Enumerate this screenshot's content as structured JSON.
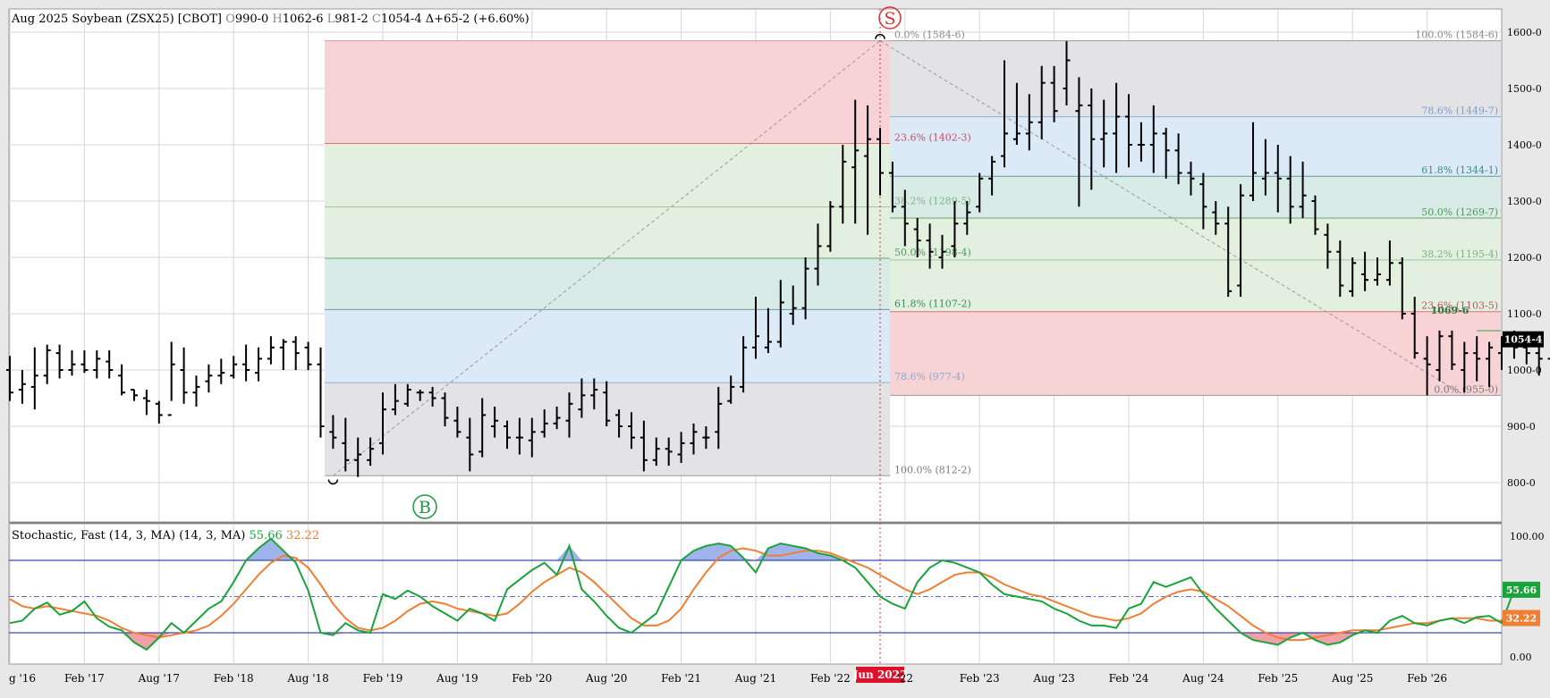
{
  "chart_data": [
    {
      "type": "ohlc",
      "header": {
        "title": "Aug 2025 Soybean (ZSX25) [CBOT]",
        "o_label": "O",
        "o": "990-0",
        "h_label": "H",
        "h": "1062-6",
        "l_label": "L",
        "l": "981-2",
        "c_label": "C",
        "c": "1054-4",
        "chg": "Δ+65-2 (+6.60%)"
      },
      "ylim": [
        750,
        1630
      ],
      "y_ticks": [
        "800-0",
        "900-0",
        "1000-0",
        "1100-0",
        "1200-0",
        "1300-0",
        "1400-0",
        "1500-0",
        "1600-0"
      ],
      "y_tick_values": [
        800,
        900,
        1000,
        1100,
        1200,
        1300,
        1400,
        1500,
        1600
      ],
      "last_price_label": "1054-4",
      "last_price": 1054.5,
      "ohlc_monthly": [
        [
          1000,
          1025,
          945,
          960
        ],
        [
          965,
          1000,
          940,
          975
        ],
        [
          970,
          1040,
          930,
          990
        ],
        [
          990,
          1045,
          975,
          1035
        ],
        [
          1030,
          1045,
          985,
          1000
        ],
        [
          1000,
          1035,
          990,
          1010
        ],
        [
          1010,
          1035,
          995,
          1000
        ],
        [
          1000,
          1035,
          985,
          1020
        ],
        [
          1015,
          1035,
          985,
          1000
        ],
        [
          990,
          1010,
          955,
          960
        ],
        [
          965,
          965,
          945,
          955
        ],
        [
          950,
          965,
          920,
          945
        ],
        [
          940,
          945,
          905,
          920
        ],
        [
          920,
          1050,
          945,
          1010
        ],
        [
          1000,
          1040,
          940,
          960
        ],
        [
          960,
          990,
          935,
          970
        ],
        [
          980,
          1010,
          960,
          990
        ],
        [
          990,
          1020,
          975,
          995
        ],
        [
          990,
          1025,
          985,
          1010
        ],
        [
          1010,
          1045,
          980,
          1000
        ],
        [
          995,
          1040,
          980,
          1020
        ],
        [
          1020,
          1060,
          1010,
          1040
        ],
        [
          1040,
          1055,
          1000,
          1050
        ],
        [
          1050,
          1060,
          1000,
          1030
        ],
        [
          1040,
          1050,
          1000,
          1010
        ],
        [
          1010,
          1040,
          880,
          900
        ],
        [
          890,
          920,
          860,
          880
        ],
        [
          870,
          915,
          820,
          840
        ],
        [
          840,
          880,
          810,
          850
        ],
        [
          840,
          880,
          830,
          860
        ],
        [
          870,
          960,
          850,
          930
        ],
        [
          930,
          975,
          920,
          945
        ],
        [
          940,
          975,
          935,
          965
        ],
        [
          960,
          965,
          945,
          960
        ],
        [
          960,
          970,
          935,
          950
        ],
        [
          950,
          960,
          900,
          915
        ],
        [
          910,
          935,
          880,
          890
        ],
        [
          880,
          915,
          820,
          850
        ],
        [
          855,
          950,
          845,
          920
        ],
        [
          900,
          935,
          880,
          910
        ],
        [
          900,
          910,
          860,
          880
        ],
        [
          880,
          915,
          850,
          880
        ],
        [
          875,
          915,
          845,
          890
        ],
        [
          890,
          930,
          880,
          905
        ],
        [
          905,
          935,
          895,
          915
        ],
        [
          910,
          960,
          880,
          940
        ],
        [
          930,
          985,
          915,
          955
        ],
        [
          955,
          985,
          930,
          965
        ],
        [
          960,
          980,
          900,
          910
        ],
        [
          920,
          930,
          880,
          900
        ],
        [
          900,
          925,
          860,
          880
        ],
        [
          880,
          910,
          820,
          840
        ],
        [
          840,
          880,
          830,
          860
        ],
        [
          860,
          880,
          830,
          855
        ],
        [
          850,
          890,
          835,
          870
        ],
        [
          870,
          905,
          850,
          890
        ],
        [
          880,
          900,
          860,
          880
        ],
        [
          890,
          970,
          860,
          940
        ],
        [
          945,
          990,
          940,
          970
        ],
        [
          970,
          1060,
          960,
          1040
        ],
        [
          1040,
          1130,
          1020,
          1060
        ],
        [
          1040,
          1110,
          1030,
          1050
        ],
        [
          1050,
          1160,
          1040,
          1120
        ],
        [
          1100,
          1150,
          1080,
          1110
        ],
        [
          1110,
          1200,
          1090,
          1180
        ],
        [
          1180,
          1260,
          1150,
          1220
        ],
        [
          1220,
          1300,
          1210,
          1290
        ],
        [
          1290,
          1400,
          1260,
          1370
        ],
        [
          1360,
          1480,
          1260,
          1390
        ],
        [
          1380,
          1470,
          1240,
          1410
        ],
        [
          1410,
          1430,
          1310,
          1350
        ],
        [
          1350,
          1370,
          1280,
          1290
        ],
        [
          1290,
          1320,
          1220,
          1260
        ],
        [
          1250,
          1270,
          1200,
          1230
        ],
        [
          1230,
          1260,
          1180,
          1210
        ],
        [
          1200,
          1240,
          1180,
          1210
        ],
        [
          1220,
          1300,
          1200,
          1260
        ],
        [
          1260,
          1300,
          1240,
          1280
        ],
        [
          1290,
          1350,
          1280,
          1340
        ],
        [
          1340,
          1380,
          1310,
          1370
        ],
        [
          1380,
          1550,
          1360,
          1420
        ],
        [
          1410,
          1510,
          1400,
          1420
        ],
        [
          1420,
          1490,
          1390,
          1440
        ],
        [
          1440,
          1540,
          1410,
          1510
        ],
        [
          1510,
          1540,
          1440,
          1460
        ],
        [
          1500,
          1584,
          1470,
          1550
        ],
        [
          1460,
          1520,
          1290,
          1470
        ],
        [
          1470,
          1500,
          1320,
          1410
        ],
        [
          1410,
          1480,
          1360,
          1420
        ],
        [
          1420,
          1510,
          1350,
          1450
        ],
        [
          1450,
          1490,
          1360,
          1400
        ],
        [
          1400,
          1440,
          1370,
          1400
        ],
        [
          1400,
          1470,
          1350,
          1420
        ],
        [
          1420,
          1430,
          1340,
          1390
        ],
        [
          1390,
          1420,
          1330,
          1350
        ],
        [
          1350,
          1370,
          1310,
          1340
        ],
        [
          1330,
          1350,
          1250,
          1290
        ],
        [
          1280,
          1300,
          1240,
          1260
        ],
        [
          1260,
          1290,
          1130,
          1140
        ],
        [
          1150,
          1330,
          1130,
          1310
        ],
        [
          1310,
          1440,
          1300,
          1350
        ],
        [
          1340,
          1410,
          1310,
          1350
        ],
        [
          1350,
          1400,
          1280,
          1340
        ],
        [
          1340,
          1380,
          1260,
          1290
        ],
        [
          1290,
          1370,
          1270,
          1310
        ],
        [
          1300,
          1310,
          1240,
          1250
        ],
        [
          1240,
          1260,
          1180,
          1210
        ],
        [
          1210,
          1230,
          1130,
          1150
        ],
        [
          1140,
          1200,
          1130,
          1190
        ],
        [
          1170,
          1210,
          1140,
          1160
        ],
        [
          1160,
          1200,
          1150,
          1170
        ],
        [
          1160,
          1230,
          1150,
          1190
        ],
        [
          1190,
          1200,
          1090,
          1100
        ],
        [
          1100,
          1130,
          1020,
          1030
        ],
        [
          1020,
          1060,
          955,
          1010
        ],
        [
          1000,
          1070,
          980,
          1060
        ],
        [
          1060,
          1070,
          1000,
          1010
        ],
        [
          1000,
          1050,
          960,
          1030
        ],
        [
          1030,
          1060,
          980,
          1020
        ],
        [
          1020,
          1050,
          970,
          1040
        ],
        [
          1030,
          1060,
          1000,
          1050
        ],
        [
          1050,
          1070,
          1020,
          1040
        ],
        [
          1040,
          1060,
          1010,
          1030
        ],
        [
          1030,
          1050,
          990,
          1020
        ],
        [
          1020,
          1060,
          970,
          1030
        ],
        [
          1030,
          1060,
          990,
          1030
        ],
        [
          1030,
          1070,
          1000,
          1040
        ],
        [
          1030,
          1070,
          1000,
          1030
        ],
        [
          1030,
          1070,
          990,
          1040
        ],
        [
          990,
          1062,
          981,
          1054
        ]
      ],
      "extra_bar_mid": [
        1015,
        1085,
        1005,
        1030
      ],
      "fib_left": {
        "levels": [
          {
            "label": "0.0% (1584-6)",
            "price": 1584.75
          },
          {
            "label": "23.6% (1402-3)",
            "price": 1402.4
          },
          {
            "label": "38.2% (1289-5)",
            "price": 1289.6
          },
          {
            "label": "50.0% (1198-4)",
            "price": 1198.5
          },
          {
            "label": "61.8% (1107-2)",
            "price": 1107.25
          },
          {
            "label": "78.6% (977-4)",
            "price": 977.5
          },
          {
            "label": "100.0% (812-2)",
            "price": 812.25
          }
        ]
      },
      "fib_right": {
        "levels": [
          {
            "label": "100.0% (1584-6)",
            "price": 1584.75
          },
          {
            "label": "78.6% (1449-7)",
            "price": 1449.9
          },
          {
            "label": "61.8% (1344-1)",
            "price": 1344.1
          },
          {
            "label": "50.0% (1269-7)",
            "price": 1269.9
          },
          {
            "label": "38.2% (1195-4)",
            "price": 1195.5
          },
          {
            "label": "23.6% (1103-5)",
            "price": 1103.6
          },
          {
            "label": "0.0% (955-0)",
            "price": 955.0
          }
        ]
      },
      "annotations": {
        "low_label": "1069-6",
        "low_price": 1069.75,
        "sell_marker": "S",
        "buy_marker": "B"
      },
      "colors": {
        "red_band": "#f7d3d6",
        "green_band": "#e3f0df",
        "teal_band": "#d9ebe7",
        "blue_band": "#dce9f6",
        "gray_band": "#e3e3e5",
        "sell_color": "#e03030",
        "buy_color": "#1a9a40"
      }
    },
    {
      "type": "line",
      "title": "Stochastic, Fast (14, 3, MA)  (14, 3, MA)",
      "k_value_label": "55.66",
      "d_value_label": "32.22",
      "ylim": [
        0,
        100
      ],
      "y_ticks": [
        "0.00",
        "100.00"
      ],
      "y_tick_values": [
        0,
        100
      ],
      "upper_band": 80,
      "lower_band": 20,
      "midline": 50,
      "series": [
        {
          "name": "55.66",
          "color": "#1aa33a",
          "values": [
            28,
            30,
            40,
            45,
            35,
            38,
            46,
            32,
            25,
            22,
            12,
            6,
            16,
            28,
            20,
            30,
            40,
            46,
            62,
            80,
            90,
            98,
            88,
            78,
            55,
            20,
            18,
            28,
            22,
            20,
            52,
            48,
            55,
            50,
            42,
            36,
            30,
            40,
            36,
            30,
            56,
            64,
            72,
            78,
            68,
            92,
            56,
            46,
            34,
            24,
            20,
            28,
            36,
            58,
            80,
            88,
            92,
            94,
            92,
            82,
            70,
            90,
            94,
            92,
            90,
            86,
            84,
            80,
            74,
            62,
            50,
            44,
            40,
            62,
            74,
            80,
            78,
            74,
            70,
            60,
            52,
            50,
            48,
            46,
            40,
            36,
            30,
            26,
            26,
            24,
            40,
            44,
            62,
            58,
            62,
            66,
            52,
            40,
            30,
            20,
            14,
            12,
            10,
            16,
            20,
            14,
            10,
            12,
            18,
            22,
            20,
            30,
            34,
            28,
            26,
            30,
            32,
            28,
            33,
            34,
            28,
            55.66
          ]
        },
        {
          "name": "32.22",
          "color": "#f07e33",
          "values": [
            48,
            42,
            40,
            42,
            40,
            38,
            36,
            34,
            30,
            24,
            20,
            18,
            16,
            18,
            20,
            22,
            26,
            34,
            44,
            56,
            68,
            78,
            84,
            82,
            74,
            60,
            44,
            32,
            24,
            22,
            24,
            30,
            38,
            44,
            46,
            44,
            40,
            38,
            36,
            34,
            36,
            44,
            54,
            62,
            68,
            74,
            70,
            62,
            52,
            42,
            32,
            26,
            26,
            30,
            40,
            56,
            70,
            82,
            88,
            90,
            88,
            84,
            84,
            86,
            88,
            88,
            86,
            82,
            78,
            74,
            68,
            62,
            56,
            52,
            56,
            62,
            68,
            70,
            70,
            66,
            60,
            56,
            52,
            50,
            46,
            42,
            38,
            34,
            32,
            30,
            32,
            36,
            44,
            50,
            54,
            56,
            54,
            48,
            42,
            34,
            26,
            20,
            16,
            14,
            14,
            16,
            18,
            20,
            22,
            22,
            22,
            24,
            26,
            28,
            28,
            30,
            32,
            32,
            32,
            30,
            30,
            32.22
          ]
        }
      ]
    }
  ],
  "x_axis": {
    "labels": [
      "g '16",
      "Feb '17",
      "Aug '17",
      "Feb '18",
      "Aug '18",
      "Feb '19",
      "Aug '19",
      "Feb '20",
      "Aug '20",
      "Feb '21",
      "Aug '21",
      "Feb '22",
      "Jun 2022",
      "'22",
      "Feb '23",
      "Aug '23",
      "Feb '24",
      "Aug '24",
      "Feb '25",
      "Aug '25",
      "Feb '26"
    ],
    "month_index": [
      0,
      6,
      12,
      18,
      24,
      30,
      36,
      42,
      48,
      54,
      60,
      66,
      70,
      72,
      78,
      84,
      90,
      96,
      102,
      108,
      114
    ],
    "highlight_label": "Jun 2022"
  }
}
